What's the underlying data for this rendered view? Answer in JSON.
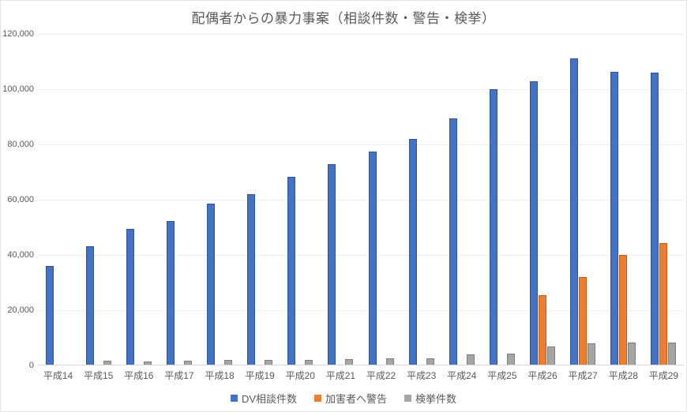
{
  "title": "配偶者からの暴力事案（相談件数・警告・検挙）",
  "chart_data": {
    "type": "bar",
    "title": "配偶者からの暴力事案（相談件数・警告・検挙）",
    "categories": [
      "平成14",
      "平成15",
      "平成16",
      "平成17",
      "平成18",
      "平成19",
      "平成20",
      "平成21",
      "平成22",
      "平成23",
      "平成24",
      "平成25",
      "平成26",
      "平成27",
      "平成28",
      "平成29"
    ],
    "series": [
      {
        "name": "DV相談件数",
        "color": "#4472C4",
        "border_color": "#2F5597",
        "values": [
          35943,
          43225,
          49329,
          52145,
          58528,
          62078,
          68196,
          72792,
          77334,
          82099,
          89490,
          99961,
          102963,
          111172,
          106367,
          106110
        ]
      },
      {
        "name": "加害者へ警告",
        "color": "#ED7D31",
        "border_color": "#C55A11",
        "values": [
          0,
          0,
          0,
          0,
          0,
          0,
          0,
          0,
          0,
          0,
          0,
          0,
          25400,
          31900,
          39900,
          44300
        ]
      },
      {
        "name": "検挙件数",
        "color": "#A5A5A5",
        "border_color": "#7F7F7F",
        "values": [
          0,
          1600,
          1450,
          1600,
          1900,
          1900,
          2100,
          2350,
          2550,
          2650,
          4100,
          4400,
          6900,
          8000,
          8300,
          8300
        ]
      }
    ],
    "ylim": [
      0,
      120000
    ],
    "ytick_interval": 20000,
    "ytick_labels": [
      "0",
      "20,000",
      "40,000",
      "60,000",
      "80,000",
      "100,000",
      "120,000"
    ],
    "grid": true,
    "legend_position": "bottom"
  },
  "colors": {
    "title_text": "#595959",
    "axis_text": "#595959",
    "gridline": "#EFEFEF",
    "axis_line": "#D9D9D9",
    "background": "#FFFFFF"
  }
}
